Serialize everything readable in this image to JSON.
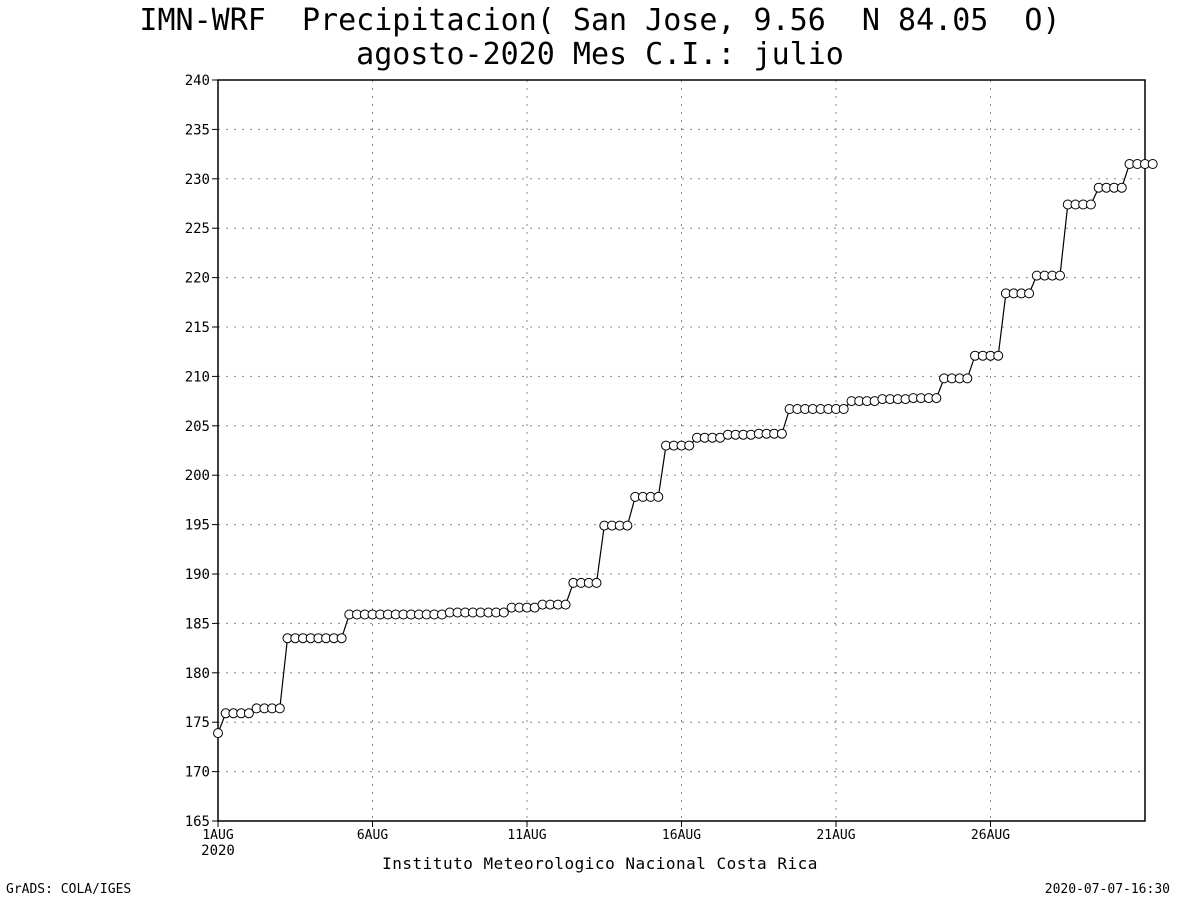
{
  "chart_data": {
    "type": "line",
    "title_line1": "IMN-WRF  Precipitacion( San Jose, 9.56  N 84.05  O)",
    "title_line2": "agosto-2020 Mes C.I.: julio",
    "xlabel": "",
    "ylabel": "",
    "ylim": [
      165,
      240
    ],
    "yticks": [
      165,
      170,
      175,
      180,
      185,
      190,
      195,
      200,
      205,
      210,
      215,
      220,
      225,
      230,
      235,
      240
    ],
    "x_ticks": [
      {
        "label": "1AUG",
        "sub": "2020",
        "day": 1
      },
      {
        "label": "6AUG",
        "day": 6
      },
      {
        "label": "11AUG",
        "day": 11
      },
      {
        "label": "16AUG",
        "day": 16
      },
      {
        "label": "21AUG",
        "day": 21
      },
      {
        "label": "26AUG",
        "day": 26
      }
    ],
    "xrange_days": [
      1,
      31
    ],
    "step_days": 0.25,
    "grid": true,
    "marker": "open-circle",
    "series": [
      {
        "values": [
          173.9,
          175.9,
          175.9,
          175.9,
          175.9,
          176.4,
          176.4,
          176.4,
          176.4,
          183.5,
          183.5,
          183.5,
          183.5,
          183.5,
          183.5,
          183.5,
          183.5,
          185.9,
          185.9,
          185.9,
          185.9,
          185.9,
          185.9,
          185.9,
          185.9,
          185.9,
          185.9,
          185.9,
          185.9,
          185.9,
          186.1,
          186.1,
          186.1,
          186.1,
          186.1,
          186.1,
          186.1,
          186.1,
          186.6,
          186.6,
          186.6,
          186.6,
          186.9,
          186.9,
          186.9,
          186.9,
          189.1,
          189.1,
          189.1,
          189.1,
          194.9,
          194.9,
          194.9,
          194.9,
          197.8,
          197.8,
          197.8,
          197.8,
          203.0,
          203.0,
          203.0,
          203.0,
          203.8,
          203.8,
          203.8,
          203.8,
          204.1,
          204.1,
          204.1,
          204.1,
          204.2,
          204.2,
          204.2,
          204.2,
          206.7,
          206.7,
          206.7,
          206.7,
          206.7,
          206.7,
          206.7,
          206.7,
          207.5,
          207.5,
          207.5,
          207.5,
          207.7,
          207.7,
          207.7,
          207.7,
          207.8,
          207.8,
          207.8,
          207.8,
          209.8,
          209.8,
          209.8,
          209.8,
          212.1,
          212.1,
          212.1,
          212.1,
          218.4,
          218.4,
          218.4,
          218.4,
          220.2,
          220.2,
          220.2,
          220.2,
          227.4,
          227.4,
          227.4,
          227.4,
          229.1,
          229.1,
          229.1,
          229.1,
          231.5,
          231.5,
          231.5,
          231.5
        ]
      }
    ]
  },
  "credit": "Instituto Meteorologico Nacional Costa Rica",
  "footer_left": "GrADS: COLA/IGES",
  "footer_right": "2020-07-07-16:30"
}
